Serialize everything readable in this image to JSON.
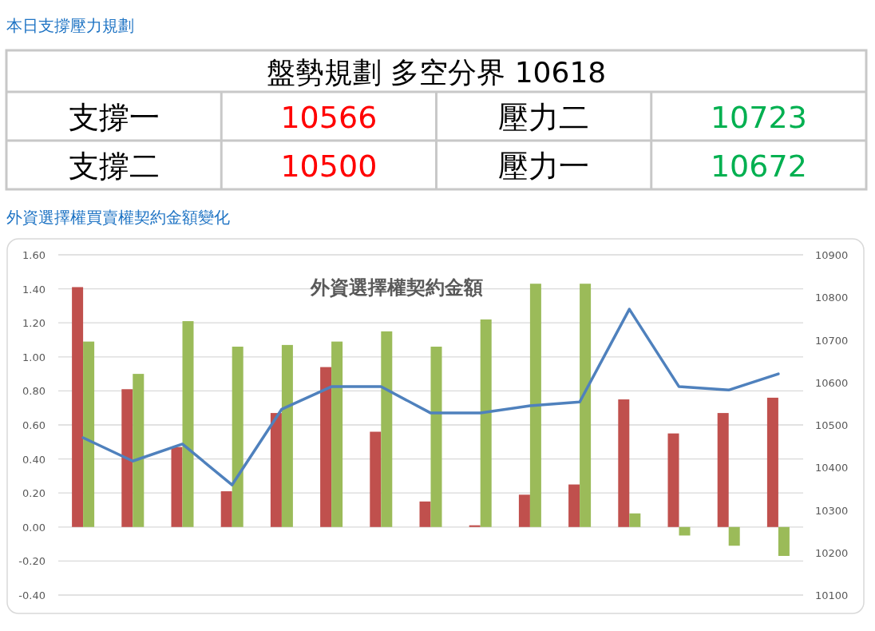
{
  "chart_data": [
    {
      "type": "other",
      "title": "本日支撐壓力規劃",
      "subtitle": "盤勢規劃 多空分界 10618",
      "categories": [
        "支撐一",
        "壓力二",
        "支撐二",
        "壓力一"
      ],
      "values": [
        10566,
        10723,
        10500,
        10672
      ],
      "colors": [
        "#ff0000",
        "#00b050",
        "#ff0000",
        "#00b050"
      ],
      "data_labels": true
    },
    {
      "type": "bar",
      "title": "外資選擇權買賣權契約金額變化",
      "subtitle": "外資選擇權契約金額",
      "categories": [
        null,
        null,
        null,
        null,
        null,
        null,
        null,
        null,
        null,
        null,
        null,
        null,
        null,
        null,
        null
      ],
      "series": [
        {
          "color": "#c0504d",
          "values": [
            1.41,
            0.81,
            0.47,
            0.21,
            0.67,
            0.94,
            0.56,
            0.15,
            0.01,
            0.19,
            0.25,
            0.75,
            0.55,
            0.67,
            0.76
          ]
        },
        {
          "color": "#9bbb59",
          "values": [
            1.09,
            0.9,
            1.21,
            1.06,
            1.07,
            1.09,
            1.15,
            1.06,
            1.22,
            1.43,
            1.43,
            0.08,
            -0.05,
            -0.11,
            -0.17
          ]
        },
        {
          "type": "line",
          "axis": "y2",
          "color": "#4f81bd",
          "values": [
            10470,
            10415,
            10455,
            10359,
            10537,
            10590,
            10590,
            10528,
            10528,
            10545,
            10554,
            10772,
            10590,
            10582,
            10620
          ]
        }
      ],
      "ylim": [
        -0.4,
        1.6
      ],
      "yticks": [
        {
          "value": -0.4,
          "label": "-0.40"
        },
        {
          "value": -0.2,
          "label": "-0.20"
        },
        {
          "value": 0,
          "label": "0.00"
        },
        {
          "value": 0.2,
          "label": "0.20"
        },
        {
          "value": 0.4,
          "label": "0.40"
        },
        {
          "value": 0.6,
          "label": "0.60"
        },
        {
          "value": 0.8,
          "label": "0.80"
        },
        {
          "value": 1.0,
          "label": "1.00"
        },
        {
          "value": 1.2,
          "label": "1.20"
        },
        {
          "value": 1.4,
          "label": "1.40"
        },
        {
          "value": 1.6,
          "label": "1.60"
        }
      ],
      "y2lim": [
        10100,
        10900
      ],
      "y2ticks": [
        10100,
        10200,
        10300,
        10400,
        10500,
        10600,
        10700,
        10800,
        10900
      ],
      "grid": "y",
      "marker": "none",
      "line_style": "solid"
    }
  ]
}
